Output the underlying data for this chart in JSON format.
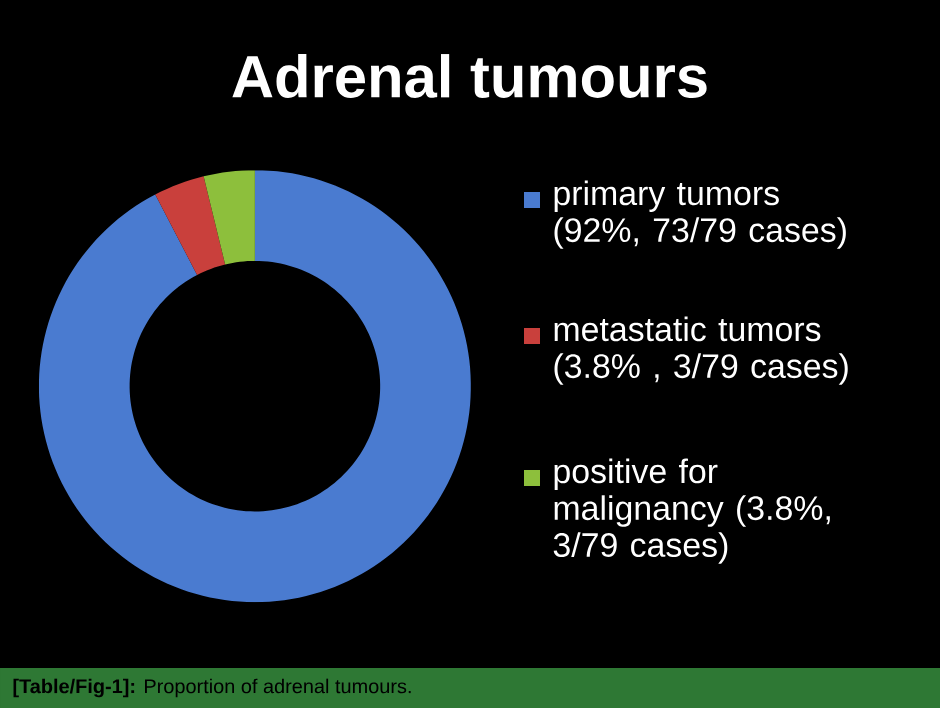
{
  "chart_data": {
    "type": "donut",
    "title": "Adrenal tumours",
    "categories": [
      "primary tumors (92%, 73/79 cases)",
      "metastatic tumors (3.8% , 3/79 cases)",
      "positive for malignancy (3.8%, 3/79 cases)"
    ],
    "values": [
      92,
      3.8,
      3.8
    ],
    "colors": [
      "#4a7bd0",
      "#c9403c",
      "#8dbf3c"
    ],
    "legend": "right",
    "annotations": [
      "**[Table/Fig-1]:** Proportion of adrenal tumours."
    ]
  }
}
